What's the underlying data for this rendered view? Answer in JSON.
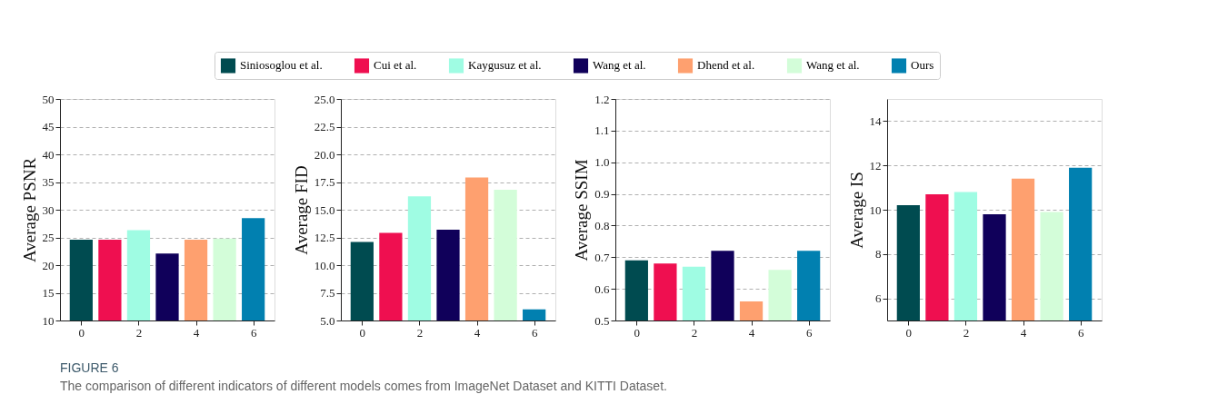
{
  "chart_data": [
    {
      "type": "bar",
      "ylabel": "Average PSNR",
      "xlim": [
        -0.74,
        6.74
      ],
      "xticks": [
        0,
        2,
        4,
        6
      ],
      "ylim": [
        10,
        50
      ],
      "yticks": [
        10,
        15,
        20,
        25,
        30,
        35,
        40,
        45,
        50
      ],
      "grid": "y",
      "legend": "top",
      "series": [
        {
          "name": "Siniosoglou et al.",
          "color": "#004b50",
          "x": [
            0
          ],
          "values": [
            24.6
          ]
        },
        {
          "name": "Cui et al.",
          "color": "#ef0f50",
          "x": [
            1
          ],
          "values": [
            24.6
          ]
        },
        {
          "name": "Kaygusuz et al.",
          "color": "#9ffce3",
          "x": [
            2
          ],
          "values": [
            26.3
          ]
        },
        {
          "name": "Wang et al.",
          "color": "#10005a",
          "x": [
            3
          ],
          "values": [
            22.1
          ]
        },
        {
          "name": "Dhend et al.",
          "color": "#fea06f",
          "x": [
            4
          ],
          "values": [
            24.6
          ]
        },
        {
          "name": "Wang et al.",
          "color": "#d3fdd9",
          "x": [
            5
          ],
          "values": [
            24.8
          ]
        },
        {
          "name": "Ours",
          "color": "#0180b0",
          "x": [
            6
          ],
          "values": [
            28.5
          ]
        }
      ],
      "annotations": [
        "FIGURE 6",
        "The comparison of different indicators of different models comes from ImageNet Dataset and KITTI Dataset."
      ]
    },
    {
      "type": "bar",
      "ylabel": "Average FID",
      "xlim": [
        -0.74,
        6.74
      ],
      "xticks": [
        0,
        2,
        4,
        6
      ],
      "ylim": [
        5,
        25
      ],
      "yticks": [
        {
          "value": 5,
          "label": "5.0"
        },
        {
          "value": 7.5,
          "label": "7.5"
        },
        {
          "value": 10,
          "label": "10.0"
        },
        {
          "value": 12.5,
          "label": "12.5"
        },
        {
          "value": 15,
          "label": "15.0"
        },
        {
          "value": 17.5,
          "label": "17.5"
        },
        {
          "value": 20,
          "label": "20.0"
        },
        {
          "value": 22.5,
          "label": "22.5"
        },
        {
          "value": 25,
          "label": "25.0"
        }
      ],
      "grid": "y",
      "series": [
        {
          "color": "#004b50",
          "x": [
            0
          ],
          "values": [
            12.1
          ]
        },
        {
          "color": "#ef0f50",
          "x": [
            1
          ],
          "values": [
            12.9
          ]
        },
        {
          "color": "#9ffce3",
          "x": [
            2
          ],
          "values": [
            16.2
          ]
        },
        {
          "color": "#10005a",
          "x": [
            3
          ],
          "values": [
            13.2
          ]
        },
        {
          "color": "#fea06f",
          "x": [
            4
          ],
          "values": [
            17.9
          ]
        },
        {
          "color": "#d3fdd9",
          "x": [
            5
          ],
          "values": [
            16.8
          ]
        },
        {
          "color": "#0180b0",
          "x": [
            6
          ],
          "values": [
            6.0
          ]
        }
      ]
    },
    {
      "type": "bar",
      "ylabel": "Average SSIM",
      "xlim": [
        -0.74,
        6.74
      ],
      "xticks": [
        0,
        2,
        4,
        6
      ],
      "ylim": [
        0.5,
        1.2
      ],
      "yticks": [
        0.5,
        0.6,
        0.7,
        0.8,
        0.9,
        {
          "value": 1,
          "label": "1.0"
        },
        1.1,
        1.2
      ],
      "grid": "y",
      "series": [
        {
          "color": "#004b50",
          "x": [
            0
          ],
          "values": [
            0.69
          ]
        },
        {
          "color": "#ef0f50",
          "x": [
            1
          ],
          "values": [
            0.68
          ]
        },
        {
          "color": "#9ffce3",
          "x": [
            2
          ],
          "values": [
            0.67
          ]
        },
        {
          "color": "#10005a",
          "x": [
            3
          ],
          "values": [
            0.72
          ]
        },
        {
          "color": "#fea06f",
          "x": [
            4
          ],
          "values": [
            0.56
          ]
        },
        {
          "color": "#d3fdd9",
          "x": [
            5
          ],
          "values": [
            0.66
          ]
        },
        {
          "color": "#0180b0",
          "x": [
            6
          ],
          "values": [
            0.72
          ]
        }
      ]
    },
    {
      "type": "bar",
      "ylabel": "Average IS",
      "xlim": [
        -0.74,
        6.74
      ],
      "xticks": [
        0,
        2,
        4,
        6
      ],
      "ylim": [
        5,
        15
      ],
      "yticks": [
        6,
        8,
        10,
        12,
        14
      ],
      "grid": "y",
      "series": [
        {
          "color": "#004b50",
          "x": [
            0
          ],
          "values": [
            10.2
          ]
        },
        {
          "color": "#ef0f50",
          "x": [
            1
          ],
          "values": [
            10.7
          ]
        },
        {
          "color": "#9ffce3",
          "x": [
            2
          ],
          "values": [
            10.8
          ]
        },
        {
          "color": "#10005a",
          "x": [
            3
          ],
          "values": [
            9.8
          ]
        },
        {
          "color": "#fea06f",
          "x": [
            4
          ],
          "values": [
            11.4
          ]
        },
        {
          "color": "#d3fdd9",
          "x": [
            5
          ],
          "values": [
            9.9
          ]
        },
        {
          "color": "#0180b0",
          "x": [
            6
          ],
          "values": [
            11.9
          ]
        }
      ]
    }
  ]
}
